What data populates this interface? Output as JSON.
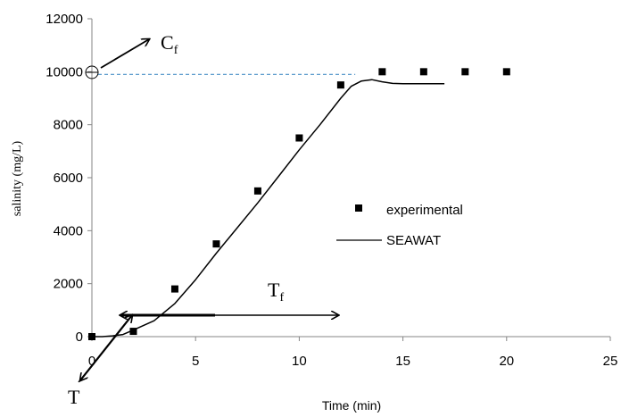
{
  "chart_data": {
    "type": "scatter",
    "xlabel": "Time (min)",
    "ylabel": "salinity (mg/L)",
    "xlim": [
      0,
      25
    ],
    "ylim": [
      0,
      12000
    ],
    "x_ticks": [
      "0",
      "5",
      "10",
      "15",
      "20",
      "25"
    ],
    "y_ticks": [
      "0",
      "2000",
      "4000",
      "6000",
      "8000",
      "10000",
      "12000"
    ],
    "grid": false,
    "legend_position": "middle-right",
    "series": [
      {
        "name": "experimental",
        "kind": "markers",
        "marker": "square",
        "x": [
          0,
          2,
          4,
          6,
          8,
          10,
          12,
          14,
          16,
          18,
          20
        ],
        "y": [
          0,
          200,
          1800,
          3500,
          5500,
          7500,
          9500,
          10000,
          10000,
          10000,
          10000
        ]
      },
      {
        "name": "SEAWAT",
        "kind": "line",
        "x": [
          0,
          0.5,
          1,
          1.5,
          2,
          3,
          4,
          5,
          6,
          7,
          8,
          9,
          10,
          11,
          12,
          12.5,
          13,
          13.5,
          14,
          14.5,
          15,
          16,
          17
        ],
        "y": [
          0,
          0,
          30,
          80,
          250,
          600,
          1250,
          2150,
          3150,
          4100,
          5050,
          6050,
          7050,
          8000,
          9000,
          9450,
          9650,
          9700,
          9620,
          9560,
          9550,
          9550,
          9550
        ]
      }
    ],
    "reference_line": {
      "y": 9900,
      "x_range": [
        0,
        12.7
      ],
      "style": "dashed",
      "color": "#4a90c8"
    },
    "annotations": [
      {
        "kind": "label",
        "text": "C",
        "sub": "f"
      },
      {
        "kind": "label",
        "text": "T",
        "sub": "f"
      },
      {
        "kind": "label",
        "text": "T",
        "sub": ""
      }
    ]
  },
  "colors": {
    "marker": "#000000",
    "line": "#000000",
    "reference": "#4a90c8"
  }
}
